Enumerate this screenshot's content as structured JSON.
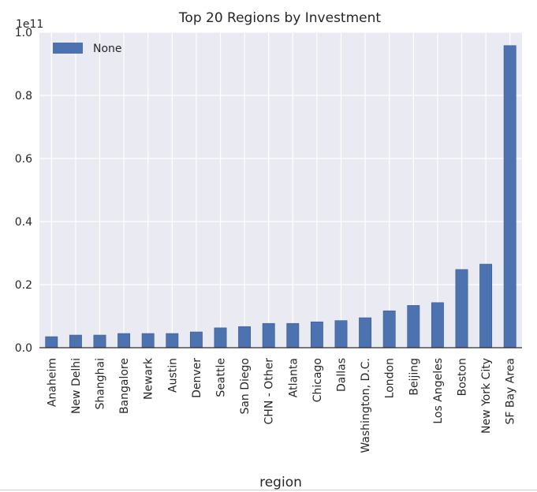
{
  "chart_data": {
    "type": "bar",
    "title": "Top 20 Regions by Investment",
    "xlabel": "region",
    "ylabel": "",
    "y_offset_label": "1e11",
    "ylim": [
      0,
      1.0
    ],
    "y_ticks": [
      "0.0",
      "0.2",
      "0.4",
      "0.6",
      "0.8",
      "1.0"
    ],
    "categories": [
      "Anaheim",
      "New Delhi",
      "Shanghai",
      "Bangalore",
      "Newark",
      "Austin",
      "Denver",
      "Seattle",
      "San Diego",
      "CHN - Other",
      "Atlanta",
      "Chicago",
      "Dallas",
      "Washington, D.C.",
      "London",
      "Beijing",
      "Los Angeles",
      "Boston",
      "New York City",
      "SF Bay Area"
    ],
    "series": [
      {
        "name": "None",
        "color": "#4c72b0",
        "values": [
          0.035,
          0.04,
          0.04,
          0.045,
          0.045,
          0.045,
          0.05,
          0.063,
          0.067,
          0.077,
          0.077,
          0.082,
          0.086,
          0.095,
          0.117,
          0.134,
          0.143,
          0.248,
          0.265,
          0.958
        ]
      }
    ],
    "grid": true,
    "legend_position": "top-left",
    "background_color": "#eaeaf2"
  }
}
